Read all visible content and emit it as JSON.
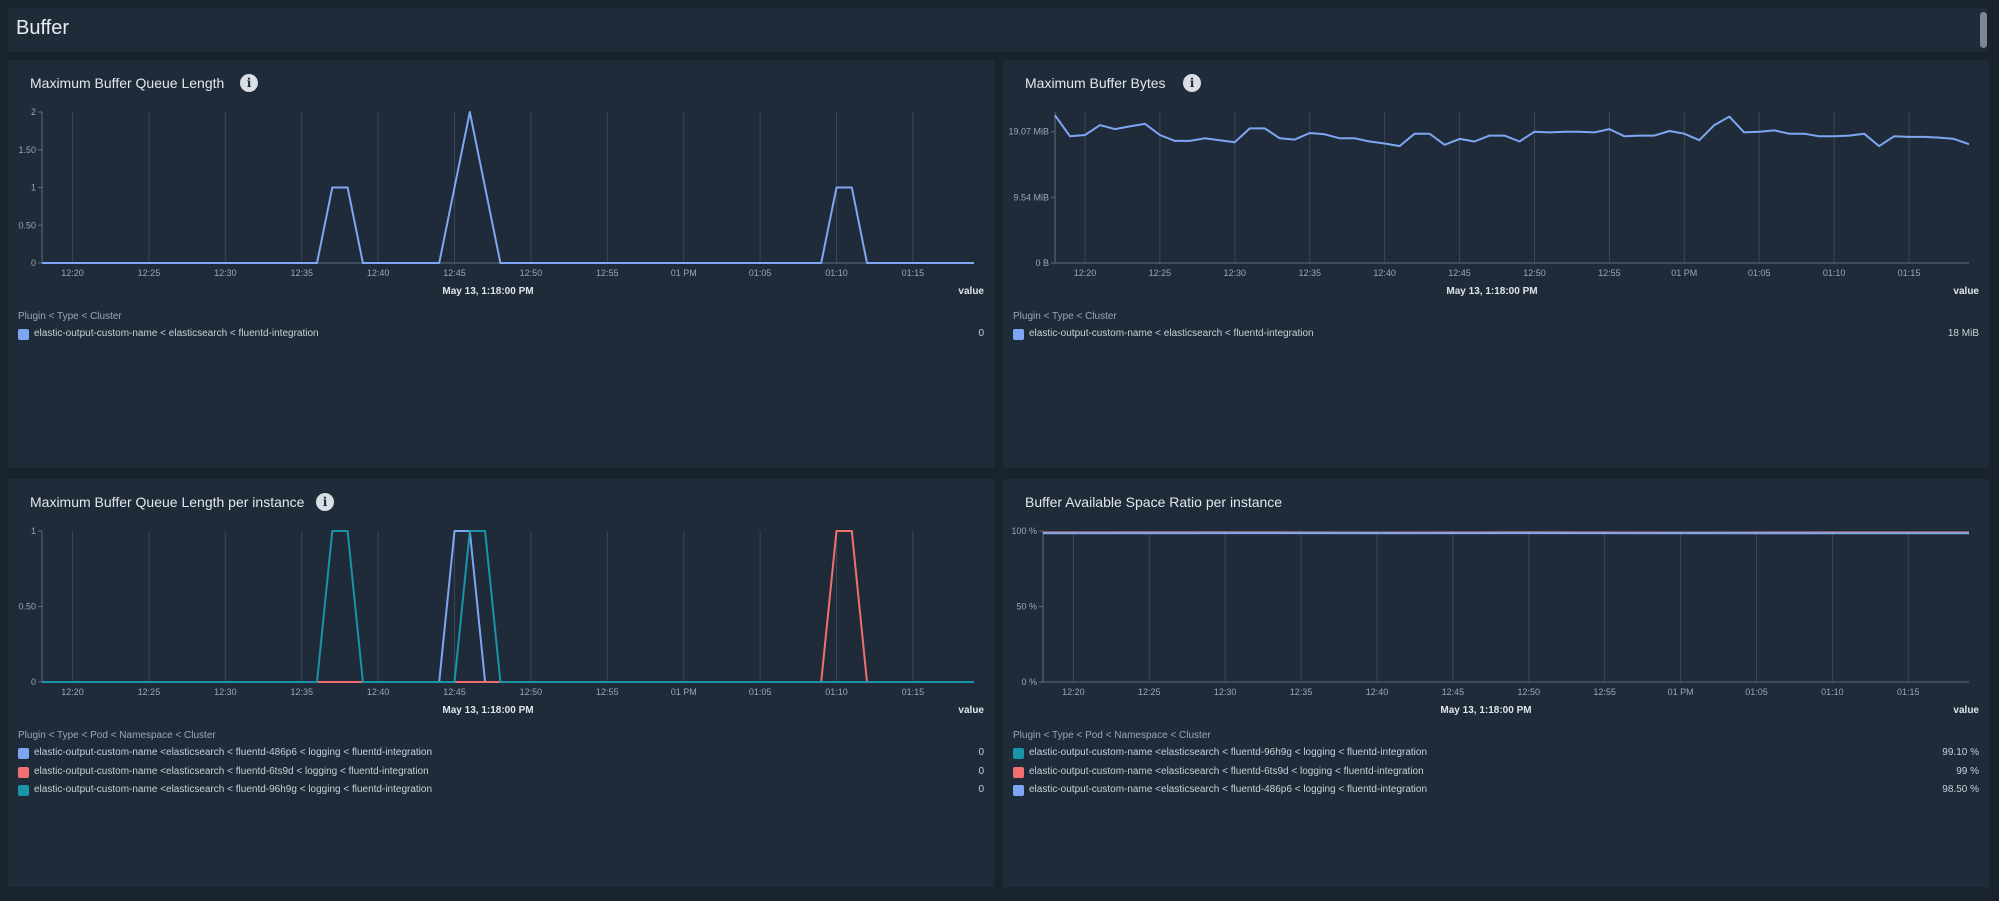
{
  "section": {
    "title": "Buffer"
  },
  "panels": [
    {
      "title": "Maximum Buffer Queue Length",
      "info": "i",
      "timestamp": "May 13, 1:18:00 PM",
      "value_header": "value",
      "legend_header": "Plugin < Type < Cluster",
      "legend": [
        {
          "label": "elastic-output-custom-name < elasticsearch < fluentd-integration",
          "value": "0",
          "color": "#7fa6f2"
        }
      ]
    },
    {
      "title": "Maximum Buffer Bytes",
      "info": "i",
      "timestamp": "May 13, 1:18:00 PM",
      "value_header": "value",
      "legend_header": "Plugin < Type < Cluster",
      "legend": [
        {
          "label": "elastic-output-custom-name < elasticsearch < fluentd-integration",
          "value": "18 MiB",
          "color": "#7fa6f2"
        }
      ]
    },
    {
      "title": "Maximum Buffer Queue Length per instance",
      "info": "i",
      "timestamp": "May 13, 1:18:00 PM",
      "value_header": "value",
      "legend_header": "Plugin < Type < Pod < Namespace < Cluster",
      "legend": [
        {
          "label": "elastic-output-custom-name <elasticsearch < fluentd-486p6 < logging < fluentd-integration",
          "value": "0",
          "color": "#7fa6f2"
        },
        {
          "label": "elastic-output-custom-name <elasticsearch < fluentd-6ts9d < logging < fluentd-integration",
          "value": "0",
          "color": "#f07070"
        },
        {
          "label": "elastic-output-custom-name <elasticsearch < fluentd-96h9g < logging < fluentd-integration",
          "value": "0",
          "color": "#1a94a8"
        }
      ]
    },
    {
      "title": "Buffer Available Space Ratio per instance",
      "timestamp": "May 13, 1:18:00 PM",
      "value_header": "value",
      "legend_header": "Plugin < Type < Pod < Namespace < Cluster",
      "legend": [
        {
          "label": "elastic-output-custom-name <elasticsearch < fluentd-96h9g < logging < fluentd-integration",
          "value": "99.10 %",
          "color": "#1a94a8"
        },
        {
          "label": "elastic-output-custom-name <elasticsearch < fluentd-6ts9d < logging < fluentd-integration",
          "value": "99 %",
          "color": "#f07070"
        },
        {
          "label": "elastic-output-custom-name <elasticsearch < fluentd-486p6 < logging < fluentd-integration",
          "value": "98.50 %",
          "color": "#7fa6f2"
        }
      ]
    }
  ],
  "chart_data": [
    {
      "type": "line",
      "title": "Maximum Buffer Queue Length",
      "x_ticks": [
        "12:20",
        "12:25",
        "12:30",
        "12:35",
        "12:40",
        "12:45",
        "12:50",
        "12:55",
        "01 PM",
        "01:05",
        "01:10",
        "01:15"
      ],
      "x_range_minutes": [
        18,
        79
      ],
      "y_ticks": [
        "0",
        "0.50",
        "1",
        "1.50",
        "2"
      ],
      "ylim": [
        0,
        2
      ],
      "series": [
        {
          "name": "elastic-output-custom-name < elasticsearch < fluentd-integration",
          "color": "#7fa6f2",
          "points": [
            [
              18,
              0
            ],
            [
              36,
              0
            ],
            [
              37,
              1
            ],
            [
              38,
              1
            ],
            [
              39,
              0
            ],
            [
              44,
              0
            ],
            [
              46,
              2
            ],
            [
              48,
              0
            ],
            [
              69,
              0
            ],
            [
              70,
              1
            ],
            [
              71,
              1
            ],
            [
              72,
              0
            ],
            [
              79,
              0
            ]
          ]
        }
      ]
    },
    {
      "type": "line",
      "title": "Maximum Buffer Bytes",
      "x_ticks": [
        "12:20",
        "12:25",
        "12:30",
        "12:35",
        "12:40",
        "12:45",
        "12:50",
        "12:55",
        "01 PM",
        "01:05",
        "01:10",
        "01:15"
      ],
      "x_range_minutes": [
        18,
        79
      ],
      "y_ticks": [
        "0 B",
        "9.54 MiB",
        "19.07 MiB"
      ],
      "ylim": [
        0,
        23
      ],
      "series": [
        {
          "name": "elastic-output-custom-name < elasticsearch < fluentd-integration",
          "color": "#7fa6f2",
          "points": [
            [
              18,
              22.5
            ],
            [
              19,
              19.3
            ],
            [
              20,
              19.5
            ],
            [
              21,
              21.0
            ],
            [
              22,
              20.4
            ],
            [
              23,
              20.8
            ],
            [
              24,
              21.2
            ],
            [
              25,
              19.5
            ],
            [
              26,
              18.6
            ],
            [
              27,
              18.6
            ],
            [
              28,
              19.0
            ],
            [
              29,
              18.7
            ],
            [
              30,
              18.4
            ],
            [
              31,
              20.5
            ],
            [
              32,
              20.5
            ],
            [
              33,
              19.0
            ],
            [
              34,
              18.8
            ],
            [
              35,
              19.8
            ],
            [
              36,
              19.6
            ],
            [
              37,
              19.0
            ],
            [
              38,
              19.0
            ],
            [
              39,
              18.5
            ],
            [
              40,
              18.2
            ],
            [
              41,
              17.8
            ],
            [
              42,
              19.7
            ],
            [
              43,
              19.7
            ],
            [
              44,
              18.0
            ],
            [
              45,
              18.9
            ],
            [
              46,
              18.5
            ],
            [
              47,
              19.4
            ],
            [
              48,
              19.4
            ],
            [
              49,
              18.5
            ],
            [
              50,
              20.0
            ],
            [
              51,
              19.9
            ],
            [
              52,
              20.0
            ],
            [
              53,
              20.0
            ],
            [
              54,
              19.9
            ],
            [
              55,
              20.4
            ],
            [
              56,
              19.3
            ],
            [
              57,
              19.4
            ],
            [
              58,
              19.4
            ],
            [
              59,
              20.1
            ],
            [
              60,
              19.7
            ],
            [
              61,
              18.7
            ],
            [
              62,
              21.0
            ],
            [
              63,
              22.3
            ],
            [
              64,
              19.9
            ],
            [
              65,
              20.0
            ],
            [
              66,
              20.2
            ],
            [
              67,
              19.7
            ],
            [
              68,
              19.7
            ],
            [
              69,
              19.3
            ],
            [
              70,
              19.3
            ],
            [
              71,
              19.4
            ],
            [
              72,
              19.7
            ],
            [
              73,
              17.8
            ],
            [
              74,
              19.3
            ],
            [
              75,
              19.2
            ],
            [
              76,
              19.2
            ],
            [
              77,
              19.1
            ],
            [
              78,
              18.9
            ],
            [
              79,
              18.1
            ]
          ]
        }
      ]
    },
    {
      "type": "line",
      "title": "Maximum Buffer Queue Length per instance",
      "x_ticks": [
        "12:20",
        "12:25",
        "12:30",
        "12:35",
        "12:40",
        "12:45",
        "12:50",
        "12:55",
        "01 PM",
        "01:05",
        "01:10",
        "01:15"
      ],
      "x_range_minutes": [
        18,
        79
      ],
      "y_ticks": [
        "0",
        "0.50",
        "1"
      ],
      "ylim": [
        0,
        1
      ],
      "series": [
        {
          "name": "fluentd-486p6",
          "color": "#7fa6f2",
          "points": [
            [
              18,
              0
            ],
            [
              44,
              0
            ],
            [
              45,
              1
            ],
            [
              46,
              1
            ],
            [
              47,
              0
            ],
            [
              79,
              0
            ]
          ]
        },
        {
          "name": "fluentd-6ts9d",
          "color": "#f07070",
          "points": [
            [
              18,
              0
            ],
            [
              69,
              0
            ],
            [
              70,
              1
            ],
            [
              71,
              1
            ],
            [
              72,
              0
            ],
            [
              79,
              0
            ]
          ]
        },
        {
          "name": "fluentd-96h9g",
          "color": "#1a94a8",
          "points": [
            [
              18,
              0
            ],
            [
              36,
              0
            ],
            [
              37,
              1
            ],
            [
              38,
              1
            ],
            [
              39,
              0
            ],
            [
              45,
              0
            ],
            [
              46,
              1
            ],
            [
              47,
              1
            ],
            [
              48,
              0
            ],
            [
              79,
              0
            ]
          ]
        }
      ]
    },
    {
      "type": "line",
      "title": "Buffer Available Space Ratio per instance",
      "x_ticks": [
        "12:20",
        "12:25",
        "12:30",
        "12:35",
        "12:40",
        "12:45",
        "12:50",
        "12:55",
        "01 PM",
        "01:05",
        "01:10",
        "01:15"
      ],
      "x_range_minutes": [
        18,
        79
      ],
      "y_ticks": [
        "0 %",
        "50 %",
        "100 %"
      ],
      "ylim": [
        0,
        100
      ],
      "series": [
        {
          "name": "fluentd-96h9g",
          "color": "#1a94a8",
          "points": [
            [
              18,
              99.1
            ],
            [
              30,
              99.2
            ],
            [
              40,
              99.0
            ],
            [
              50,
              99.2
            ],
            [
              60,
              99.0
            ],
            [
              70,
              99.1
            ],
            [
              79,
              99.1
            ]
          ]
        },
        {
          "name": "fluentd-6ts9d",
          "color": "#f07070",
          "points": [
            [
              18,
              99.0
            ],
            [
              30,
              99.0
            ],
            [
              40,
              98.9
            ],
            [
              50,
              99.0
            ],
            [
              60,
              98.9
            ],
            [
              70,
              99.0
            ],
            [
              79,
              99.0
            ]
          ]
        },
        {
          "name": "fluentd-486p6",
          "color": "#7fa6f2",
          "points": [
            [
              18,
              98.5
            ],
            [
              30,
              98.6
            ],
            [
              40,
              98.5
            ],
            [
              50,
              98.6
            ],
            [
              60,
              98.5
            ],
            [
              70,
              98.5
            ],
            [
              79,
              98.5
            ]
          ]
        }
      ]
    }
  ]
}
